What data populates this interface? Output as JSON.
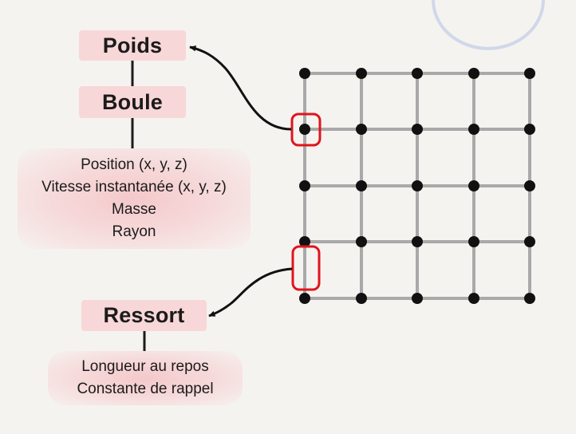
{
  "labels": {
    "poids": "Poids",
    "boule": "Boule",
    "ressort": "Ressort"
  },
  "boule_attributes": [
    "Position (x, y, z)",
    "Vitesse instantanée (x, y, z)",
    "Masse",
    "Rayon"
  ],
  "ressort_attributes": [
    "Longueur au repos",
    "Constante de rappel"
  ],
  "grid": {
    "rows": 5,
    "cols": 5
  },
  "colors": {
    "background": "#f5f3ef",
    "label_fill": "#f8d7d8",
    "node": "#111111",
    "spring": "#a9a9a9",
    "highlight": "#e0141e",
    "arrow": "#111111",
    "decor_circle": "#cfd8ea"
  }
}
